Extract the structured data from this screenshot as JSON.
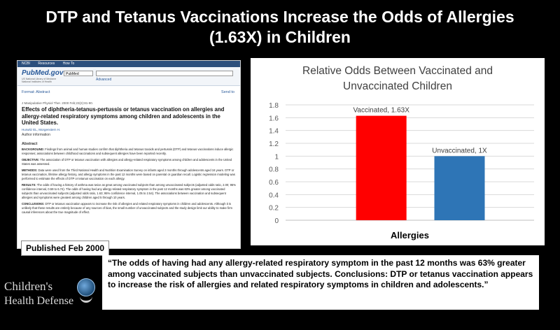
{
  "title": {
    "line1": "DTP and Tetanus Vaccinations Increase the Odds of Allergies",
    "line2": "(1.63X) in Children"
  },
  "article": {
    "topbar": [
      "NCBI",
      "Resources",
      "How To"
    ],
    "logo": "PubMed.gov",
    "logo_sub": "US National Library of Medicine National Institutes of Health",
    "db_select": "PubMed",
    "advanced": "Advanced",
    "format": "Format: Abstract",
    "send_to": "Send to",
    "citation": "J Manipulative Physiol Ther. 2000 Feb;23(2):81-90.",
    "heading": "Effects of diphtheria-tetanus-pertussis or tetanus vaccination on allergies and allergy-related respiratory symptoms among children and adolescents in the United States.",
    "authors": "Hurwitz EL, Morgenstern H.",
    "author_info": "Author information",
    "abstract_label": "Abstract",
    "abstract": [
      {
        "label": "BACKGROUND:",
        "text": "Findings from animal and human studies confirm that diphtheria and tetanus toxoids and pertussis (DTP) and tetanus vaccinations induce allergic responses; associations between childhood vaccinations and subsequent allergies have been reported recently."
      },
      {
        "label": "OBJECTIVE:",
        "text": "The association of DTP or tetanus vaccination with allergies and allergy-related respiratory symptoms among children and adolescents in the United States was assessed."
      },
      {
        "label": "METHODS:",
        "text": "Data were used from the Third National Health and Nutrition Examination Survey on infants aged 2 months through adolescents aged 16 years. DTP or tetanus vaccination, lifetime allergy history, and allergy symptoms in the past 12 months were based on parental or guardian recall. Logistic regression modeling was performed to estimate the effects of DTP or tetanus vaccination on each allergy."
      },
      {
        "label": "RESULTS:",
        "text": "The odds of having a history of asthma was twice as great among vaccinated subjects than among unvaccinated subjects (adjusted odds ratio, 2.00; 95% confidence interval, 0.59 to 6.74). The odds of having had any allergy-related respiratory symptom in the past 12 months was 63% greater among vaccinated subjects than unvaccinated subjects (adjusted odds ratio, 1.63; 95% confidence interval, 1.05 to 2.54). The associations between vaccination and subsequent allergies and symptoms were greatest among children aged 5 through 10 years."
      },
      {
        "label": "CONCLUSIONS:",
        "text": "DTP or tetanus vaccination appears to increase the risk of allergies and related respiratory symptoms in children and adolescents. Although it is unlikely that these results are entirely because of any sources of bias, the small number of unvaccinated subjects and the study design limit our ability to make firm causal inferences about the true magnitude of effect."
      }
    ]
  },
  "published_label": "Published Feb 2000",
  "quote": "“The odds of having had any allergy-related respiratory symptom in the past 12 months was 63% greater among vaccinated subjects than unvaccinated subjects. Conclusions: DTP or tetanus vaccination appears to increase the risk of allergies and related respiratory symptoms in children and adolescents.”",
  "logo": {
    "line1": "Children's",
    "line2": "Health Defense"
  },
  "chart_data": {
    "type": "bar",
    "title_line1": "Relative Odds Between Vaccinated and",
    "title_line2": "Unvaccinated Children",
    "xlabel": "Allergies",
    "ylabel": "",
    "ylim": [
      0,
      1.8
    ],
    "yticks": [
      "0",
      "0.2",
      "0.4",
      "0.6",
      "0.8",
      "1",
      "1.2",
      "1.4",
      "1.6",
      "1.8"
    ],
    "grid": true,
    "legend": "none",
    "series": [
      {
        "name": "Vaccinated",
        "value": 1.63,
        "label": "Vaccinated, 1.63X",
        "color": "#ff0000"
      },
      {
        "name": "Unvaccinated",
        "value": 1,
        "label": "Unvaccinated, 1X",
        "color": "#2e75b6"
      }
    ]
  }
}
